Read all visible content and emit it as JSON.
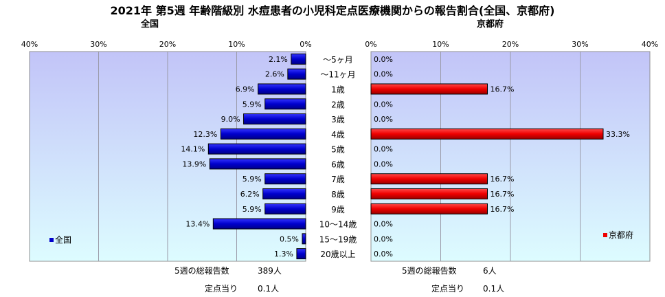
{
  "title": "2021年 第5週 年齢階級別 水痘患者の小児科定点医療機関からの報告割合(全国、京都府)",
  "colors": {
    "japan": "#0000cc",
    "kyoto": "#ee0000"
  },
  "left": {
    "subtitle": "全国",
    "legend": "全国",
    "footer": {
      "total_label": "5週の総報告数",
      "total_value": "389人",
      "per_label": "定点当り",
      "per_value": "0.1人"
    }
  },
  "right": {
    "subtitle": "京都府",
    "legend": "京都府",
    "footer": {
      "total_label": "5週の総報告数",
      "total_value": "6人",
      "per_label": "定点当り",
      "per_value": "0.1人"
    }
  },
  "chart_data": [
    {
      "type": "bar",
      "orientation": "horizontal",
      "direction": "right-to-left",
      "categories": [
        "～5ヶ月",
        "～11ヶ月",
        "1歳",
        "2歳",
        "3歳",
        "4歳",
        "5歳",
        "6歳",
        "7歳",
        "8歳",
        "9歳",
        "10～14歳",
        "15～19歳",
        "20歳以上"
      ],
      "series": [
        {
          "name": "全国",
          "values": [
            2.1,
            2.6,
            6.9,
            5.9,
            9.0,
            12.3,
            14.1,
            13.9,
            5.9,
            6.2,
            5.9,
            13.4,
            0.5,
            1.3
          ]
        }
      ],
      "data_labels": [
        "2.1%",
        "2.6%",
        "6.9%",
        "5.9%",
        "9.0%",
        "12.3%",
        "14.1%",
        "13.9%",
        "5.9%",
        "6.2%",
        "5.9%",
        "13.4%",
        "0.5%",
        "1.3%"
      ],
      "xlim": [
        0,
        40
      ],
      "ticks": [
        "0%",
        "10%",
        "20%",
        "30%",
        "40%"
      ],
      "legend_position": "bottom-left",
      "grid": true
    },
    {
      "type": "bar",
      "orientation": "horizontal",
      "direction": "left-to-right",
      "categories": [
        "～5ヶ月",
        "～11ヶ月",
        "1歳",
        "2歳",
        "3歳",
        "4歳",
        "5歳",
        "6歳",
        "7歳",
        "8歳",
        "9歳",
        "10～14歳",
        "15～19歳",
        "20歳以上"
      ],
      "series": [
        {
          "name": "京都府",
          "values": [
            0.0,
            0.0,
            16.7,
            0.0,
            0.0,
            33.3,
            0.0,
            0.0,
            16.7,
            16.7,
            16.7,
            0.0,
            0.0,
            0.0
          ]
        }
      ],
      "data_labels": [
        "0.0%",
        "0.0%",
        "16.7%",
        "0.0%",
        "0.0%",
        "33.3%",
        "0.0%",
        "0.0%",
        "16.7%",
        "16.7%",
        "16.7%",
        "0.0%",
        "0.0%",
        "0.0%"
      ],
      "xlim": [
        0,
        40
      ],
      "ticks": [
        "0%",
        "10%",
        "20%",
        "30%",
        "40%"
      ],
      "legend_position": "bottom-right",
      "grid": true
    }
  ]
}
